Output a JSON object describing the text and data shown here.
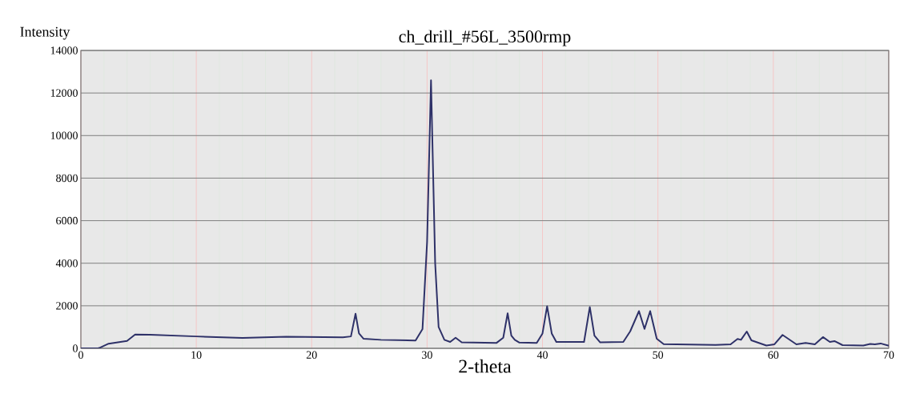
{
  "chart_data": {
    "type": "line",
    "title": "ch_drill_#56L_3500rmp",
    "xlabel": "2-theta",
    "ylabel": "Intensity",
    "x": [
      0,
      1.5,
      1.7,
      2.4,
      4.0,
      4.7,
      6.0,
      10.0,
      14.0,
      17.8,
      22.7,
      23.4,
      23.8,
      24.1,
      24.5,
      26.0,
      29.0,
      29.6,
      30.0,
      30.34,
      30.7,
      31.0,
      31.5,
      32.0,
      32.47,
      33.0,
      36.0,
      36.6,
      36.98,
      37.3,
      37.6,
      38.0,
      39.5,
      40.0,
      40.4,
      40.8,
      41.2,
      43.6,
      44.1,
      44.5,
      45.0,
      47.0,
      47.6,
      48.36,
      48.84,
      49.33,
      49.9,
      50.5,
      55.0,
      56.3,
      56.9,
      57.2,
      57.7,
      58.1,
      59.4,
      60.1,
      60.8,
      62.0,
      62.8,
      63.6,
      64.3,
      64.9,
      65.3,
      66.0,
      67.8,
      68.4,
      68.8,
      69.3,
      69.95,
      70
    ],
    "series": [
      {
        "color": "#2e3168",
        "values": [
          0,
          0,
          40,
          220,
          350,
          650,
          640,
          560,
          490,
          550,
          520,
          560,
          1630,
          700,
          450,
          400,
          370,
          900,
          5000,
          12600,
          4000,
          1000,
          400,
          300,
          500,
          280,
          250,
          500,
          1650,
          600,
          400,
          270,
          250,
          700,
          1980,
          700,
          300,
          300,
          1940,
          600,
          280,
          300,
          800,
          1750,
          910,
          1750,
          450,
          200,
          160,
          190,
          440,
          400,
          790,
          375,
          130,
          190,
          630,
          190,
          250,
          190,
          530,
          300,
          340,
          150,
          130,
          210,
          190,
          230,
          130,
          120
        ]
      }
    ],
    "xlim": [
      0,
      70
    ],
    "ylim": [
      0,
      14000
    ],
    "xticks": [
      0,
      10,
      20,
      30,
      40,
      50,
      60,
      70
    ],
    "yticks": [
      0,
      2000,
      4000,
      6000,
      8000,
      10000,
      12000,
      14000
    ],
    "grid": true,
    "marker": "none",
    "line_style": "solid"
  }
}
